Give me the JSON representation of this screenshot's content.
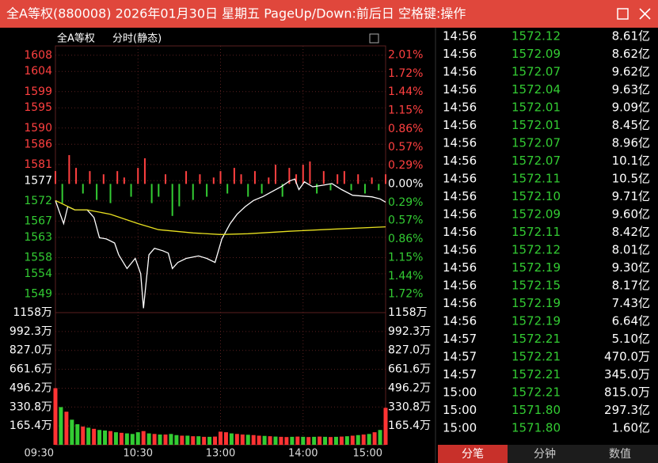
{
  "header": {
    "title": "全A等权(880008) 2026年01月30日 星期五 PageUp/Down:前后日 空格键:操作"
  },
  "chart": {
    "type": "line",
    "title": "全A等权",
    "subtitle": "分时(静态)",
    "xlim": [
      0,
      240
    ],
    "xticks": [
      {
        "value": 0,
        "label": "09:30"
      },
      {
        "value": 60,
        "label": "10:30"
      },
      {
        "value": 120,
        "label": "13:00"
      },
      {
        "value": 180,
        "label": "14:00"
      },
      {
        "value": 240,
        "label": "15:00"
      }
    ],
    "ylim": [
      1544.4,
      1610.3
    ],
    "yticks": [
      1608,
      1604,
      1599,
      1595,
      1590,
      1586,
      1581,
      1577,
      1572,
      1567,
      1563,
      1558,
      1554,
      1549
    ],
    "y2lim": [
      -2.01,
      2.155
    ],
    "y2ticks": [
      {
        "value": 2.01,
        "label": "2.01%"
      },
      {
        "value": 1.72,
        "label": "1.72%"
      },
      {
        "value": 1.44,
        "label": "1.44%"
      },
      {
        "value": 1.15,
        "label": "1.15%"
      },
      {
        "value": 0.86,
        "label": "0.86%"
      },
      {
        "value": 0.57,
        "label": "0.57%"
      },
      {
        "value": 0.29,
        "label": "0.29%"
      },
      {
        "value": 0,
        "label": "0.00%"
      },
      {
        "value": -0.29,
        "label": "0.29%"
      },
      {
        "value": -0.57,
        "label": "0.57%"
      },
      {
        "value": -0.86,
        "label": "0.86%"
      },
      {
        "value": -1.15,
        "label": "1.15%"
      },
      {
        "value": -1.44,
        "label": "1.44%"
      },
      {
        "value": -1.72,
        "label": "1.72%"
      }
    ],
    "series": [
      {
        "color": "#ffffff",
        "x": [
          0,
          3,
          6,
          9,
          14,
          23,
          28,
          32,
          37,
          43,
          46,
          52,
          58,
          62,
          64,
          68,
          72,
          78,
          82,
          85,
          89,
          95,
          104,
          110,
          116,
          121,
          127,
          132,
          138,
          144,
          151,
          158,
          164,
          170,
          174,
          177,
          181,
          187,
          195,
          201,
          208,
          216,
          223,
          230,
          236,
          240
        ],
        "values": [
          1572.1,
          1569.2,
          1566.4,
          1570.6,
          1569.8,
          1569.8,
          1567.9,
          1562.9,
          1562.6,
          1561.6,
          1558.7,
          1555.3,
          1557.8,
          1554.0,
          1545.5,
          1558.7,
          1560.3,
          1559.7,
          1559.1,
          1555.3,
          1556.8,
          1557.8,
          1558.4,
          1557.8,
          1556.8,
          1562.6,
          1566.4,
          1568.7,
          1570.6,
          1572.1,
          1573.1,
          1574.4,
          1575.5,
          1576.9,
          1577.4,
          1574.8,
          1576.7,
          1575.5,
          1575.9,
          1576.3,
          1574.8,
          1573.4,
          1573.2,
          1573.0,
          1572.5,
          1571.7
        ]
      },
      {
        "color": "#e8e020",
        "x": [
          0,
          14,
          23,
          40,
          60,
          75,
          100,
          120,
          140,
          170,
          200,
          240
        ],
        "values": [
          1572.1,
          1569.8,
          1569.8,
          1568.7,
          1566.4,
          1564.9,
          1564.1,
          1563.7,
          1563.9,
          1564.5,
          1565.0,
          1565.6
        ]
      }
    ],
    "breadth": {
      "x": [
        0,
        5,
        10,
        15,
        20,
        25,
        30,
        35,
        40,
        45,
        50,
        55,
        60,
        65,
        70,
        75,
        80,
        85,
        90,
        95,
        100,
        105,
        110,
        115,
        120,
        125,
        130,
        135,
        140,
        145,
        150,
        155,
        160,
        165,
        170,
        175,
        180,
        185,
        190,
        195,
        200,
        205,
        210,
        215,
        220,
        225,
        230,
        235,
        240
      ],
      "values": [
        0.2,
        -0.3,
        0.45,
        0.25,
        -0.15,
        0.2,
        -0.25,
        0.15,
        -0.3,
        0.2,
        0.1,
        -0.2,
        0.25,
        0.4,
        -0.3,
        -0.2,
        0.15,
        -0.5,
        -0.35,
        0.2,
        -0.25,
        0.15,
        -0.2,
        0.1,
        0.2,
        -0.15,
        0.25,
        0.15,
        -0.2,
        0.2,
        -0.15,
        0.1,
        0.3,
        -0.2,
        0.25,
        0.15,
        0.3,
        0.35,
        -0.15,
        0.2,
        -0.1,
        0.15,
        0.2,
        -0.1,
        0.15,
        -0.15,
        0.1,
        -0.1,
        0.15
      ]
    },
    "volume": {
      "ylim": [
        0,
        1158
      ],
      "yticks": [
        {
          "value": 1158,
          "label": "1158万"
        },
        {
          "value": 992.3,
          "label": "992.3万"
        },
        {
          "value": 827.0,
          "label": "827.0万"
        },
        {
          "value": 661.6,
          "label": "661.6万"
        },
        {
          "value": 496.2,
          "label": "496.2万"
        },
        {
          "value": 330.8,
          "label": "330.8万"
        },
        {
          "value": 165.4,
          "label": "165.4万"
        }
      ],
      "x": [
        0,
        4,
        8,
        12,
        16,
        20,
        24,
        28,
        32,
        36,
        40,
        44,
        48,
        52,
        56,
        60,
        64,
        68,
        72,
        76,
        80,
        84,
        88,
        92,
        96,
        100,
        104,
        108,
        112,
        116,
        120,
        124,
        128,
        132,
        136,
        140,
        144,
        148,
        152,
        156,
        160,
        164,
        168,
        172,
        176,
        180,
        184,
        188,
        192,
        196,
        200,
        204,
        208,
        212,
        216,
        220,
        224,
        228,
        232,
        236,
        240
      ],
      "values": [
        496,
        330,
        290,
        220,
        180,
        160,
        150,
        140,
        130,
        125,
        120,
        110,
        105,
        100,
        95,
        110,
        120,
        100,
        95,
        90,
        90,
        95,
        85,
        80,
        80,
        75,
        75,
        70,
        70,
        72,
        115,
        110,
        100,
        95,
        90,
        88,
        85,
        80,
        78,
        75,
        72,
        70,
        68,
        70,
        72,
        70,
        68,
        70,
        72,
        70,
        68,
        70,
        72,
        75,
        80,
        85,
        90,
        95,
        110,
        130,
        324
      ],
      "colors": [
        "#ff3333",
        "#33cc33",
        "#ff3333",
        "#33cc33",
        "#33cc33",
        "#ff3333",
        "#33cc33",
        "#ff3333",
        "#33cc33",
        "#33cc33",
        "#ff3333",
        "#33cc33",
        "#ff3333",
        "#33cc33",
        "#33cc33",
        "#33cc33",
        "#ff3333",
        "#33cc33",
        "#ff3333",
        "#33cc33",
        "#ff3333",
        "#33cc33",
        "#33cc33",
        "#ff3333",
        "#33cc33",
        "#ff3333",
        "#33cc33",
        "#ff3333",
        "#33cc33",
        "#ff3333",
        "#ff3333",
        "#ff3333",
        "#33cc33",
        "#ff3333",
        "#ff3333",
        "#33cc33",
        "#ff3333",
        "#ff3333",
        "#33cc33",
        "#ff3333",
        "#33cc33",
        "#ff3333",
        "#ff3333",
        "#33cc33",
        "#ff3333",
        "#33cc33",
        "#ff3333",
        "#33cc33",
        "#ff3333",
        "#33cc33",
        "#ff3333",
        "#33cc33",
        "#ff3333",
        "#33cc33",
        "#ff3333",
        "#33cc33",
        "#ff3333",
        "#33cc33",
        "#ff3333",
        "#33cc33",
        "#ff3333"
      ]
    }
  },
  "trades": {
    "rows": [
      [
        "14:56",
        "1572.12",
        "8.61亿"
      ],
      [
        "14:56",
        "1572.09",
        "8.62亿"
      ],
      [
        "14:56",
        "1572.07",
        "9.62亿"
      ],
      [
        "14:56",
        "1572.04",
        "9.63亿"
      ],
      [
        "14:56",
        "1572.01",
        "9.09亿"
      ],
      [
        "14:56",
        "1572.01",
        "8.45亿"
      ],
      [
        "14:56",
        "1572.07",
        "8.96亿"
      ],
      [
        "14:56",
        "1572.07",
        "10.1亿"
      ],
      [
        "14:56",
        "1572.11",
        "10.5亿"
      ],
      [
        "14:56",
        "1572.10",
        "9.71亿"
      ],
      [
        "14:56",
        "1572.09",
        "9.60亿"
      ],
      [
        "14:56",
        "1572.11",
        "8.42亿"
      ],
      [
        "14:56",
        "1572.12",
        "8.01亿"
      ],
      [
        "14:56",
        "1572.19",
        "9.30亿"
      ],
      [
        "14:56",
        "1572.15",
        "8.17亿"
      ],
      [
        "14:56",
        "1572.19",
        "7.43亿"
      ],
      [
        "14:56",
        "1572.19",
        "6.64亿"
      ],
      [
        "14:57",
        "1572.21",
        "5.10亿"
      ],
      [
        "14:57",
        "1572.21",
        "470.0万"
      ],
      [
        "14:57",
        "1572.21",
        "345.0万"
      ],
      [
        "15:00",
        "1572.21",
        "815.0万"
      ],
      [
        "15:00",
        "1571.80",
        "297.3亿"
      ],
      [
        "15:00",
        "1571.80",
        "1.60亿"
      ]
    ]
  },
  "tabs": [
    "分笔",
    "分钟",
    "数值"
  ]
}
